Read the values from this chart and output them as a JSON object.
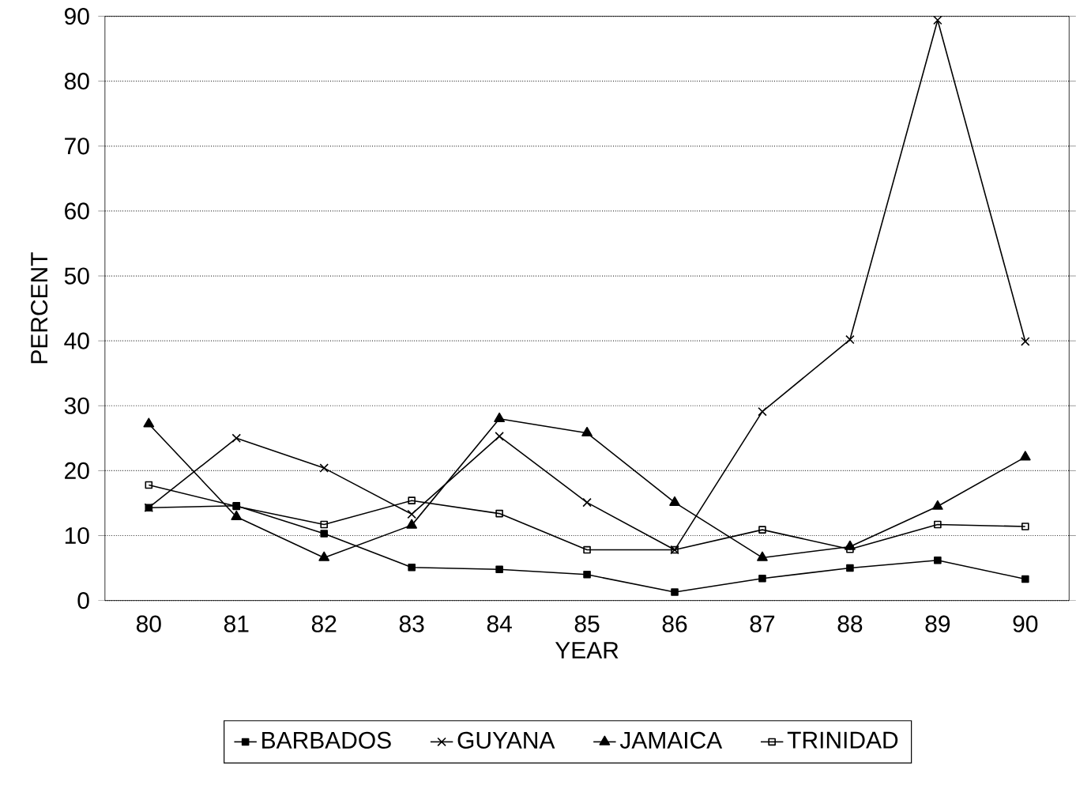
{
  "chart_data": {
    "type": "line",
    "xlabel": "YEAR",
    "ylabel": "PERCENT",
    "x": [
      80,
      81,
      82,
      83,
      84,
      85,
      86,
      87,
      88,
      89,
      90
    ],
    "xlim": [
      79.5,
      90.5
    ],
    "xticks": [
      80,
      81,
      82,
      83,
      84,
      85,
      86,
      87,
      88,
      89,
      90
    ],
    "ylim": [
      0,
      90
    ],
    "yticks": [
      0,
      10,
      20,
      30,
      40,
      50,
      60,
      70,
      80,
      90
    ],
    "grid": "y",
    "legend": "bottom",
    "line_style": "solid",
    "series": [
      {
        "name": "BARBADOS",
        "color": "#000000",
        "marker": "square",
        "values": [
          14.3,
          14.6,
          10.3,
          5.1,
          4.8,
          4.0,
          1.3,
          3.4,
          5.0,
          6.2,
          3.3
        ]
      },
      {
        "name": "GUYANA",
        "color": "#000000",
        "marker": "cross",
        "values": [
          14.3,
          25.0,
          20.4,
          13.3,
          25.3,
          15.1,
          7.8,
          29.1,
          40.2,
          89.4,
          39.9
        ]
      },
      {
        "name": "JAMAICA",
        "color": "#000000",
        "marker": "triangle",
        "values": [
          27.2,
          12.9,
          6.6,
          11.6,
          28.0,
          25.8,
          15.1,
          6.6,
          8.3,
          14.5,
          22.1
        ]
      },
      {
        "name": "TRINIDAD",
        "color": "#000000",
        "marker": "square-open",
        "values": [
          17.8,
          14.5,
          11.7,
          15.4,
          13.4,
          7.8,
          7.8,
          10.9,
          7.9,
          11.7,
          11.4
        ]
      }
    ]
  }
}
